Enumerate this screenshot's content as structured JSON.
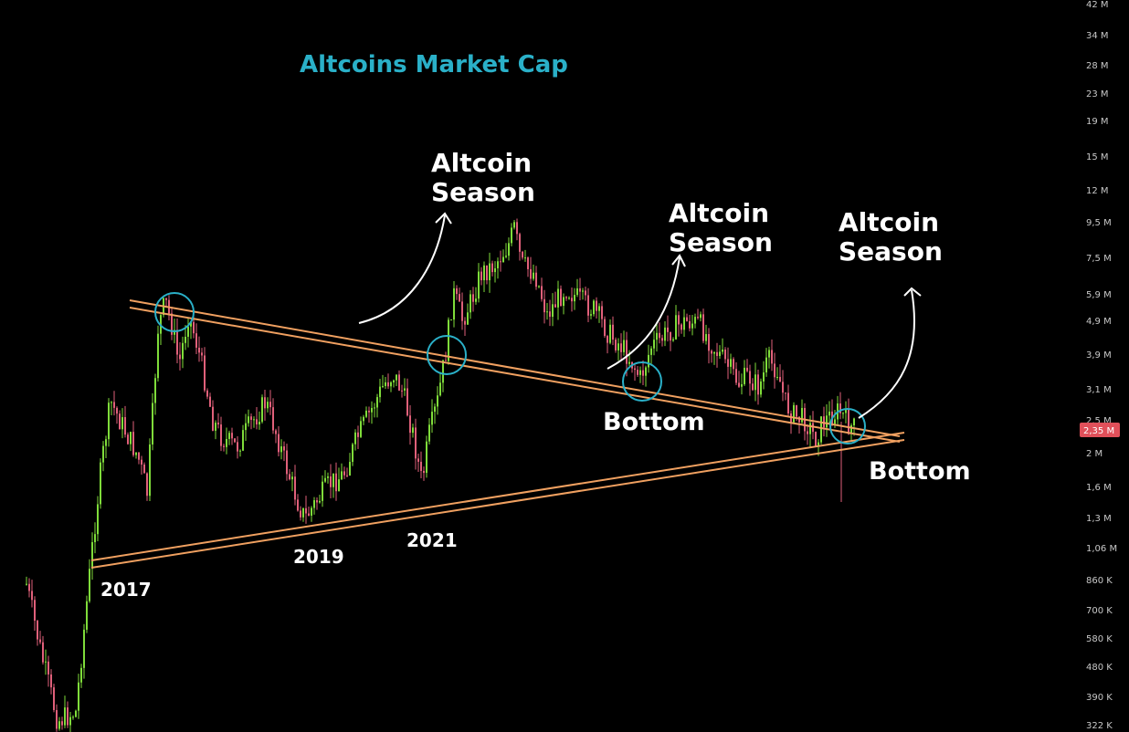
{
  "chart_data": {
    "type": "candlestick",
    "title": "Altcoins Market Cap",
    "y_scale": "log",
    "y_axis_ticks": [
      "42 M",
      "34 M",
      "28 M",
      "23 M",
      "19 M",
      "15 M",
      "12 M",
      "9,5 M",
      "7,5 M",
      "5,9 M",
      "4,9 M",
      "3,9 M",
      "3,1 M",
      "2,5 M",
      "2 M",
      "1,6 M",
      "1,3 M",
      "1,06 M",
      "860 K",
      "700 K",
      "580 K",
      "480 K",
      "390 K",
      "322 K"
    ],
    "current_price_label": "2,35 M",
    "grid": false,
    "trendlines": [
      {
        "name": "upper-descending",
        "from": "2017 peak",
        "to": "current",
        "color": "#f0a060"
      },
      {
        "name": "lower-ascending",
        "from": "2017",
        "to": "current",
        "color": "#f0a060"
      }
    ],
    "annotations": {
      "year_2017": "2017",
      "year_2019": "2019",
      "year_2021": "2021",
      "season_1": [
        "Altcoin",
        "Season"
      ],
      "season_2": [
        "Altcoin",
        "Season"
      ],
      "season_3": [
        "Altcoin",
        "Season"
      ],
      "bottom_1": "Bottom",
      "bottom_2": "Bottom"
    },
    "colors": {
      "up": "#7fdc3a",
      "down": "#e0607a",
      "trendline": "#f0a060",
      "circle": "#2ab0c8",
      "title": "#2ab0c8",
      "price_tag": "#e0505a"
    }
  }
}
